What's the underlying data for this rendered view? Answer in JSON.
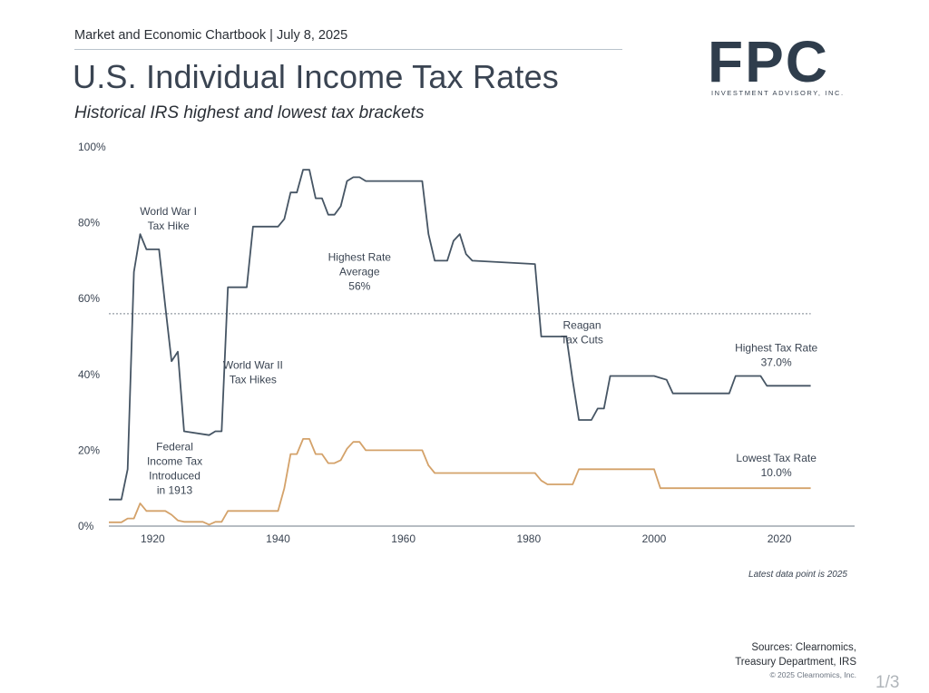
{
  "header": {
    "chartbook_line": "Market and Economic Chartbook | July 8, 2025",
    "title": "U.S. Individual Income Tax Rates",
    "subtitle": "Historical IRS highest and lowest tax brackets"
  },
  "logo": {
    "text": "FPC",
    "subtext": "INVESTMENT ADVISORY, INC.",
    "color": "#2f3d4c"
  },
  "footer": {
    "latest_note": "Latest data point is 2025",
    "sources_line1": "Sources: Clearnomics,",
    "sources_line2": "Treasury Department, IRS",
    "copyright": "© 2025 Clearnomics, Inc.",
    "page_number": "1/3"
  },
  "chart_data": {
    "type": "line",
    "xlim": [
      1913,
      2032
    ],
    "ylim": [
      0,
      100
    ],
    "x_ticks": [
      1920,
      1940,
      1960,
      1980,
      2000,
      2020
    ],
    "y_ticks": [
      "0%",
      "20%",
      "40%",
      "60%",
      "80%",
      "100%"
    ],
    "grid": false,
    "average_line": {
      "value": 56,
      "style": "dotted"
    },
    "series": [
      {
        "name": "Highest Tax Rate",
        "color": "#465564",
        "points": [
          [
            1913,
            7
          ],
          [
            1915,
            7
          ],
          [
            1916,
            15
          ],
          [
            1917,
            67
          ],
          [
            1918,
            77
          ],
          [
            1919,
            73
          ],
          [
            1921,
            73
          ],
          [
            1922,
            58
          ],
          [
            1923,
            43.5
          ],
          [
            1924,
            46
          ],
          [
            1925,
            25
          ],
          [
            1929,
            24
          ],
          [
            1930,
            25
          ],
          [
            1931,
            25
          ],
          [
            1932,
            63
          ],
          [
            1935,
            63
          ],
          [
            1936,
            79
          ],
          [
            1940,
            79
          ],
          [
            1941,
            81
          ],
          [
            1942,
            88
          ],
          [
            1943,
            88
          ],
          [
            1944,
            94
          ],
          [
            1945,
            94
          ],
          [
            1946,
            86.45
          ],
          [
            1947,
            86.45
          ],
          [
            1948,
            82.13
          ],
          [
            1949,
            82.13
          ],
          [
            1950,
            84.36
          ],
          [
            1951,
            91
          ],
          [
            1952,
            92
          ],
          [
            1953,
            92
          ],
          [
            1954,
            91
          ],
          [
            1963,
            91
          ],
          [
            1964,
            77
          ],
          [
            1965,
            70
          ],
          [
            1967,
            70
          ],
          [
            1968,
            75.25
          ],
          [
            1969,
            77
          ],
          [
            1970,
            71.75
          ],
          [
            1971,
            70
          ],
          [
            1981,
            69.125
          ],
          [
            1982,
            50
          ],
          [
            1986,
            50
          ],
          [
            1987,
            38.5
          ],
          [
            1988,
            28
          ],
          [
            1990,
            28
          ],
          [
            1991,
            31
          ],
          [
            1992,
            31
          ],
          [
            1993,
            39.6
          ],
          [
            2000,
            39.6
          ],
          [
            2001,
            39.1
          ],
          [
            2002,
            38.6
          ],
          [
            2003,
            35
          ],
          [
            2012,
            35
          ],
          [
            2013,
            39.6
          ],
          [
            2017,
            39.6
          ],
          [
            2018,
            37
          ],
          [
            2025,
            37
          ]
        ]
      },
      {
        "name": "Lowest Tax Rate",
        "color": "#d4a26a",
        "points": [
          [
            1913,
            1
          ],
          [
            1915,
            1
          ],
          [
            1916,
            2
          ],
          [
            1917,
            2
          ],
          [
            1918,
            6
          ],
          [
            1919,
            4
          ],
          [
            1922,
            4
          ],
          [
            1923,
            3
          ],
          [
            1924,
            1.5
          ],
          [
            1925,
            1.125
          ],
          [
            1928,
            1.125
          ],
          [
            1929,
            0.375
          ],
          [
            1930,
            1.125
          ],
          [
            1931,
            1.125
          ],
          [
            1932,
            4
          ],
          [
            1940,
            4
          ],
          [
            1941,
            10
          ],
          [
            1942,
            19
          ],
          [
            1943,
            19
          ],
          [
            1944,
            23
          ],
          [
            1945,
            23
          ],
          [
            1946,
            19
          ],
          [
            1947,
            19
          ],
          [
            1948,
            16.6
          ],
          [
            1949,
            16.6
          ],
          [
            1950,
            17.4
          ],
          [
            1951,
            20.4
          ],
          [
            1952,
            22.2
          ],
          [
            1953,
            22.2
          ],
          [
            1954,
            20
          ],
          [
            1963,
            20
          ],
          [
            1964,
            16
          ],
          [
            1965,
            14
          ],
          [
            1981,
            14
          ],
          [
            1982,
            12
          ],
          [
            1983,
            11
          ],
          [
            1987,
            11
          ],
          [
            1988,
            15
          ],
          [
            2000,
            15
          ],
          [
            2001,
            10
          ],
          [
            2025,
            10
          ]
        ]
      }
    ],
    "annotations": [
      {
        "id": "ww1",
        "lines": [
          "World War I",
          "Tax Hike"
        ]
      },
      {
        "id": "avg",
        "lines": [
          "Highest Rate",
          "Average",
          "56%"
        ]
      },
      {
        "id": "reagan",
        "lines": [
          "Reagan",
          "Tax Cuts"
        ]
      },
      {
        "id": "ww2",
        "lines": [
          "World War II",
          "Tax Hikes"
        ]
      },
      {
        "id": "federal",
        "lines": [
          "Federal",
          "Income Tax",
          "Introduced",
          "in 1913"
        ]
      },
      {
        "id": "highest",
        "lines": [
          "Highest Tax Rate",
          "37.0%"
        ]
      },
      {
        "id": "lowest",
        "lines": [
          "Lowest Tax Rate",
          "10.0%"
        ]
      }
    ]
  }
}
